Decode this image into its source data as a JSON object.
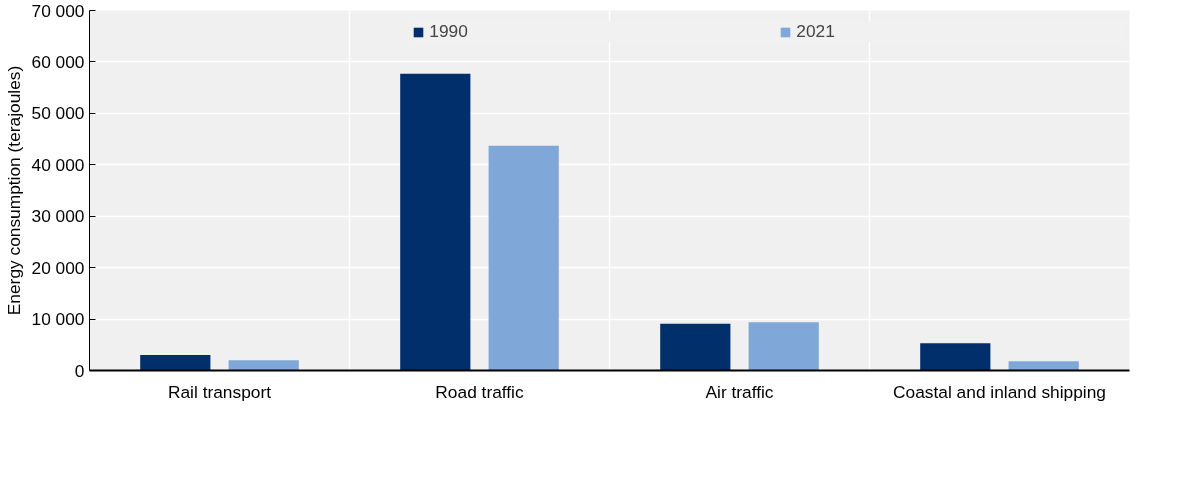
{
  "chart_data": {
    "type": "bar",
    "ylabel": "Energy consumption (terajoules)",
    "categories": [
      "Rail transport",
      "Road traffic",
      "Air traffic",
      "Coastal and inland shipping"
    ],
    "series": [
      {
        "name": "1990",
        "color": "#002f6c",
        "values": [
          3000,
          57700,
          9100,
          5300
        ]
      },
      {
        "name": "2021",
        "color": "#7fa8d9",
        "values": [
          2000,
          43700,
          9400,
          1800
        ]
      }
    ],
    "ylim": [
      0,
      70000
    ],
    "yticks": [
      {
        "value": 0,
        "label": "0"
      },
      {
        "value": 10000,
        "label": "10 000"
      },
      {
        "value": 20000,
        "label": "20 000"
      },
      {
        "value": 30000,
        "label": "30 000"
      },
      {
        "value": 40000,
        "label": "40 000"
      },
      {
        "value": 50000,
        "label": "50 000"
      },
      {
        "value": 60000,
        "label": "60 000"
      },
      {
        "value": 70000,
        "label": "70 000"
      }
    ],
    "grid": true,
    "legend": "top"
  }
}
